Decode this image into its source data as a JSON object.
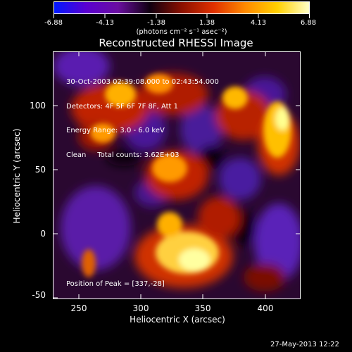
{
  "colorbar": {
    "labels": [
      "-6.88",
      "-4.13",
      "-1.38",
      "1.38",
      "4.13",
      "6.88"
    ],
    "units": "(photons cm⁻² s⁻¹ asec⁻²)",
    "colors": [
      "#0018ff",
      "#5a00d0",
      "#6a0ea0",
      "#100010",
      "#8a1000",
      "#e03000",
      "#ff8a00",
      "#ffd000",
      "#ffffc8"
    ]
  },
  "title": "Reconstructed RHESSI Image",
  "info": {
    "line1": "30-Oct-2003 02:39:08.000 to 02:43:54.000",
    "line2": "Detectors: 4F 5F 6F 7F 8F, Att 1",
    "line3": "Energy Range: 3.0 - 6.0 keV",
    "line4": "Clean     Total counts: 3.62E+03"
  },
  "peak_text": "Position of Peak = [337,-28]",
  "axes": {
    "xlabel": "Heliocentric X (arcsec)",
    "ylabel": "Heliocentric Y (arcsec)",
    "xticks": [
      "250",
      "300",
      "350",
      "400"
    ],
    "yticks": [
      "100",
      "50",
      "0",
      "-50"
    ]
  },
  "timestamp": "27-May-2013 12:22"
}
